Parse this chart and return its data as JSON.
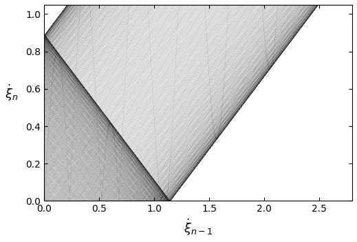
{
  "alpha": 6.5,
  "beta": 0.19,
  "eta": 0.78,
  "xlim": [
    0,
    2.8
  ],
  "ylim": [
    0,
    1.05
  ],
  "xticks": [
    0,
    0.5,
    1,
    1.5,
    2,
    2.5
  ],
  "yticks": [
    0,
    0.2,
    0.4,
    0.6,
    0.8,
    1
  ],
  "xlabel": "$\\dot{\\xi}_{n-1}$",
  "ylabel": "$\\dot{\\xi}_{n}$",
  "line_color": "#1a1a1a",
  "bg_color": "#ffffff",
  "figsize": [
    5.19,
    3.51
  ],
  "dpi": 100,
  "linewidth": 1.2
}
